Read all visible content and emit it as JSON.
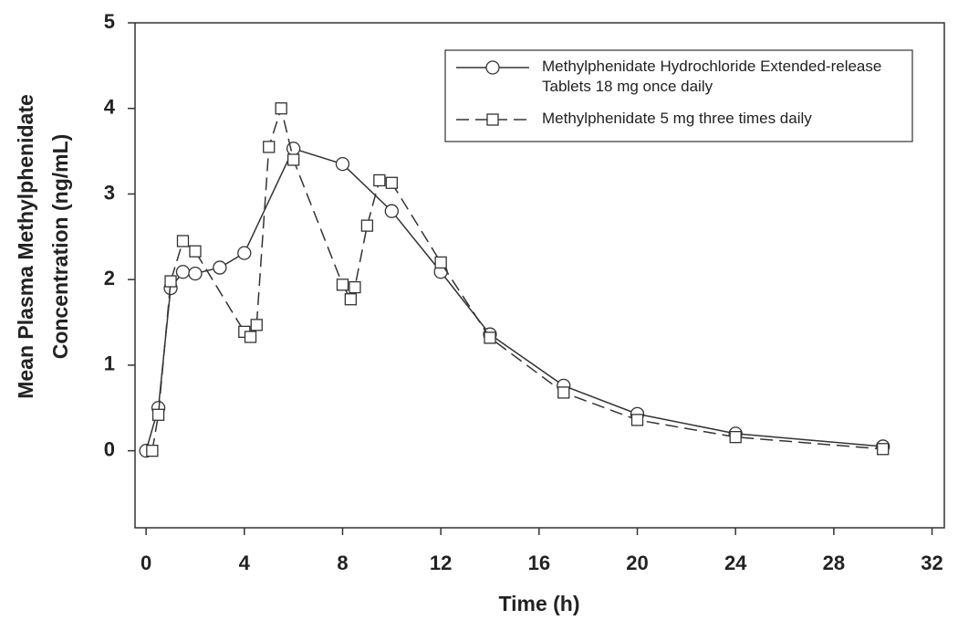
{
  "chart_data": {
    "type": "line",
    "xlabel": "Time (h)",
    "ylabel": [
      "Mean Plasma Methylphenidate",
      "Concentration (ng/mL)"
    ],
    "xlim": [
      -0.45,
      32.5
    ],
    "ylim": [
      -0.9,
      5
    ],
    "xticks": [
      0,
      4,
      8,
      12,
      16,
      20,
      24,
      28,
      32
    ],
    "yticks": [
      0,
      1,
      2,
      3,
      4,
      5
    ],
    "series": [
      {
        "name": "Methylphenidate Hydrochloride Extended-release Tablets 18 mg once daily",
        "color": "#333333",
        "linestyle": "solid",
        "marker": "circle",
        "x": [
          0,
          0.5,
          1,
          1.5,
          2,
          3,
          4,
          6,
          8,
          10,
          12,
          14,
          17,
          20,
          24,
          30
        ],
        "values": [
          0,
          0.5,
          1.9,
          2.09,
          2.07,
          2.14,
          2.31,
          3.53,
          3.35,
          2.8,
          2.09,
          1.36,
          0.76,
          0.43,
          0.2,
          0.05
        ]
      },
      {
        "name": "Methylphenidate 5 mg three times daily",
        "color": "#333333",
        "linestyle": "dashed",
        "marker": "square",
        "x": [
          0.25,
          0.5,
          1,
          1.5,
          2,
          4,
          4.25,
          4.5,
          5,
          5.5,
          6,
          8,
          8.33,
          8.5,
          9,
          9.5,
          10,
          12,
          14,
          17,
          20,
          24,
          30
        ],
        "values": [
          0,
          0.42,
          1.98,
          2.45,
          2.33,
          1.39,
          1.33,
          1.47,
          3.55,
          4.0,
          3.4,
          1.94,
          1.77,
          1.91,
          2.63,
          3.16,
          3.13,
          2.2,
          1.32,
          0.68,
          0.36,
          0.16,
          0.02
        ]
      }
    ]
  }
}
